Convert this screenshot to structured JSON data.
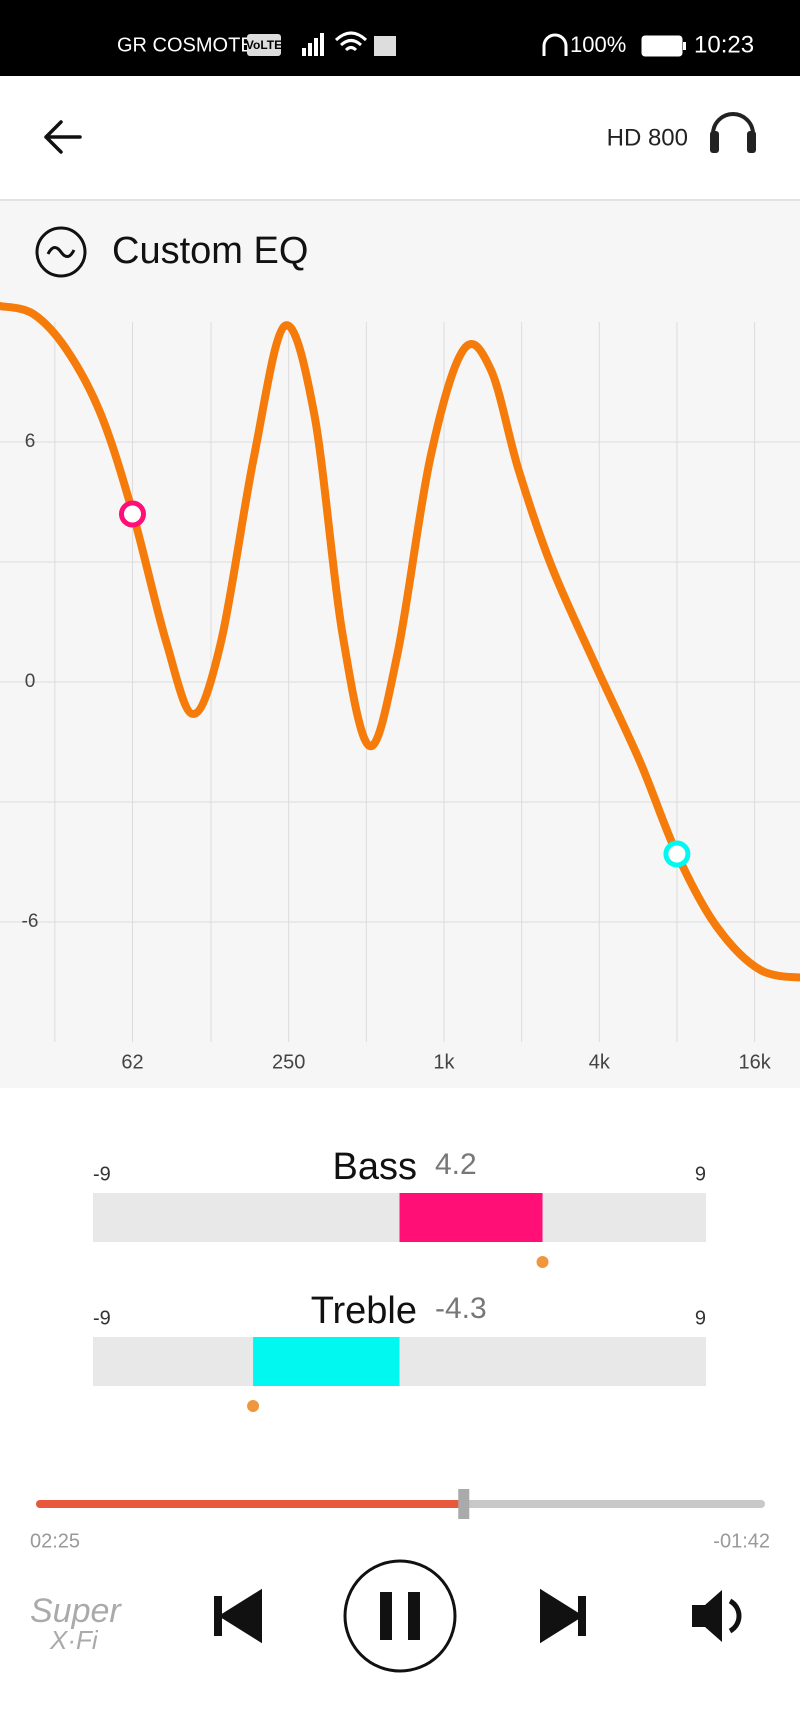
{
  "status_bar": {
    "carrier": "GR COSMOTE",
    "volte": "VoLTE",
    "battery": "100%",
    "time": "10:23"
  },
  "header": {
    "device": "HD 800"
  },
  "eq": {
    "title": "Custom EQ"
  },
  "chart_data": {
    "type": "line",
    "x": [
      19,
      25.6,
      34.5,
      46.7,
      62,
      83.8,
      106.6,
      136.6,
      183,
      241,
      314,
      403,
      515,
      660,
      885,
      1188,
      1521,
      1947,
      2610,
      3880,
      5760,
      8000,
      11370,
      16860,
      25600
    ],
    "values": [
      9.4,
      9.2,
      8.3,
      6.7,
      4.25,
      1.0,
      -0.8,
      1.0,
      5.6,
      8.9,
      6.7,
      1.25,
      -1.6,
      0.7,
      5.6,
      8.3,
      7.8,
      5.3,
      2.9,
      0.4,
      -2.0,
      -4.3,
      -6.1,
      -7.2,
      -7.4
    ],
    "color": "#f57c0a",
    "log_x": true,
    "xlim": [
      19,
      24000
    ],
    "xticks": [
      62,
      250,
      {
        "value": 1000,
        "label": "1k"
      },
      {
        "value": 4000,
        "label": "4k"
      },
      {
        "value": 16000,
        "label": "16k"
      }
    ],
    "minor_xticks": [
      31,
      125,
      500,
      2000,
      8000
    ],
    "ylim": [
      -9,
      9
    ],
    "yticks": [
      -6,
      0,
      6
    ],
    "minor_yticks": [
      -3,
      3
    ],
    "grid": true
  },
  "controls": {
    "bass": {
      "label": "Bass",
      "value": 4.2,
      "value_label": "4.2",
      "min": -9,
      "max": 9,
      "color": "#ff0f76",
      "marker_x": 62
    },
    "treble": {
      "label": "Treble",
      "value": -4.3,
      "value_label": "-4.3",
      "min": -9,
      "max": 9,
      "color": "#00f8f0",
      "marker_x": 8000
    }
  },
  "player": {
    "elapsed": "02:25",
    "remaining": "-01:42"
  },
  "logo": {
    "line1": "Super",
    "line2": "X·Fi"
  }
}
